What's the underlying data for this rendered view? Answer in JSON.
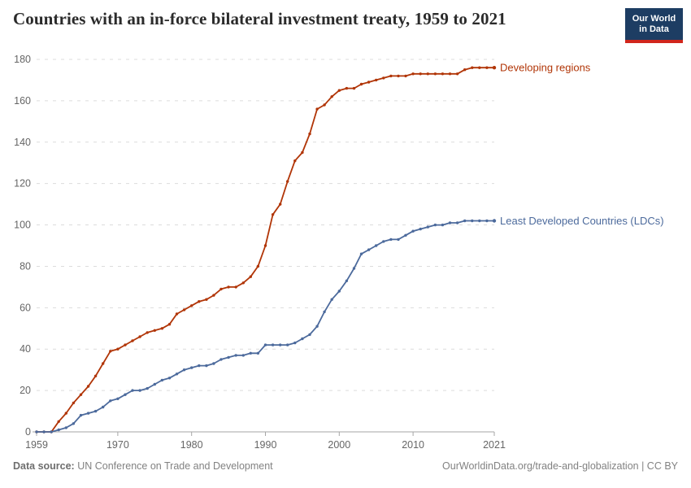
{
  "header": {
    "title": "Countries with an in-force bilateral investment treaty, 1959 to 2021",
    "logo": {
      "line1": "Our World",
      "line2": "in Data"
    }
  },
  "footer": {
    "source_label": "Data source:",
    "source_value": "UN Conference on Trade and Development",
    "attribution": "OurWorldinData.org/trade-and-globalization | CC BY"
  },
  "colors": {
    "developing_regions": "#b13507",
    "ldc": "#4c6a9c",
    "gridline": "#dcdcdc",
    "axis_line": "#a6a6a6",
    "tick_text": "#666666",
    "logo_navy": "#1d3d63",
    "logo_red": "#d1261c"
  },
  "chart_data": {
    "type": "line",
    "title": "Countries with an in-force bilateral investment treaty, 1959 to 2021",
    "xlabel": "",
    "ylabel": "",
    "xlim": [
      1959,
      2021
    ],
    "ylim": [
      0,
      180
    ],
    "grid": "horizontal-dashed",
    "legend_position": "end-of-line",
    "xticks": [
      1959,
      1970,
      1980,
      1990,
      2000,
      2010,
      2021
    ],
    "yticks": [
      0,
      20,
      40,
      60,
      80,
      100,
      120,
      140,
      160,
      180
    ],
    "x": [
      1959,
      1960,
      1961,
      1962,
      1963,
      1964,
      1965,
      1966,
      1967,
      1968,
      1969,
      1970,
      1971,
      1972,
      1973,
      1974,
      1975,
      1976,
      1977,
      1978,
      1979,
      1980,
      1981,
      1982,
      1983,
      1984,
      1985,
      1986,
      1987,
      1988,
      1989,
      1990,
      1991,
      1992,
      1993,
      1994,
      1995,
      1996,
      1997,
      1998,
      1999,
      2000,
      2001,
      2002,
      2003,
      2004,
      2005,
      2006,
      2007,
      2008,
      2009,
      2010,
      2011,
      2012,
      2013,
      2014,
      2015,
      2016,
      2017,
      2018,
      2019,
      2020,
      2021
    ],
    "series": [
      {
        "name": "Developing regions",
        "color": "#b13507",
        "values": [
          0,
          0,
          0,
          5,
          9,
          14,
          18,
          22,
          27,
          33,
          39,
          40,
          42,
          44,
          46,
          48,
          49,
          50,
          52,
          57,
          59,
          61,
          63,
          64,
          66,
          69,
          70,
          70,
          72,
          75,
          80,
          90,
          105,
          110,
          121,
          131,
          135,
          144,
          156,
          158,
          162,
          165,
          166,
          166,
          168,
          169,
          170,
          171,
          172,
          172,
          172,
          173,
          173,
          173,
          173,
          173,
          173,
          173,
          175,
          176,
          176,
          176,
          176
        ]
      },
      {
        "name": "Least Developed Countries (LDCs)",
        "color": "#4c6a9c",
        "values": [
          0,
          0,
          0,
          1,
          2,
          4,
          8,
          9,
          10,
          12,
          15,
          16,
          18,
          20,
          20,
          21,
          23,
          25,
          26,
          28,
          30,
          31,
          32,
          32,
          33,
          35,
          36,
          37,
          37,
          38,
          38,
          42,
          42,
          42,
          42,
          43,
          45,
          47,
          51,
          58,
          64,
          68,
          73,
          79,
          86,
          88,
          90,
          92,
          93,
          93,
          95,
          97,
          98,
          99,
          100,
          100,
          101,
          101,
          102,
          102,
          102,
          102,
          102
        ]
      }
    ]
  }
}
